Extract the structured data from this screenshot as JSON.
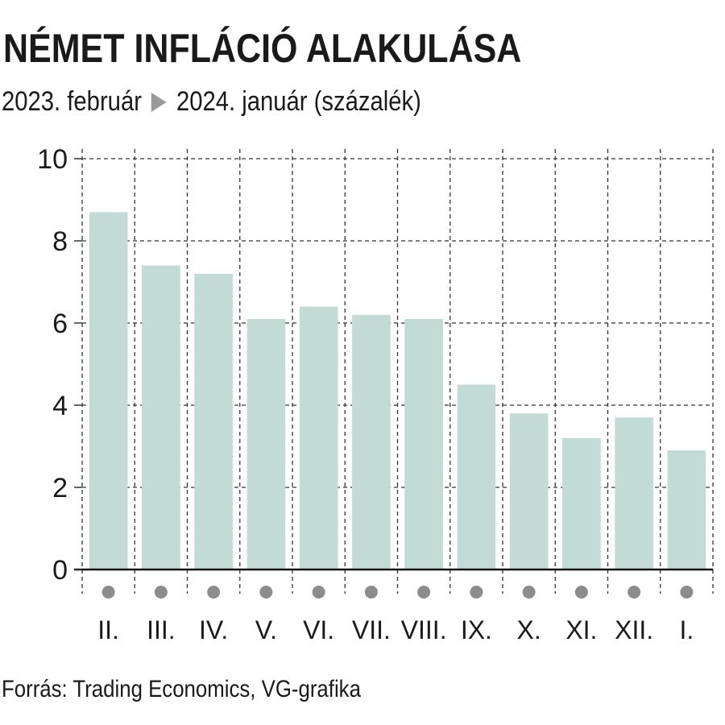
{
  "header": {
    "title": "NÉMET INFLÁCIÓ ALAKULÁSA",
    "subtitle_start": "2023. február",
    "subtitle_end": "2024. január (százalék)"
  },
  "footer": {
    "source": "Forrás: Trading Economics, VG-grafika"
  },
  "colors": {
    "bar": "#c2dbd4",
    "grid": "#333333",
    "marker": "#8c8c8c",
    "arrow": "#9a9a9a"
  },
  "chart_data": {
    "type": "bar",
    "title": "NÉMET INFLÁCIÓ ALAKULÁSA",
    "subtitle": "2023. február ▶ 2024. január (százalék)",
    "categories": [
      "II.",
      "III.",
      "IV.",
      "V.",
      "VI.",
      "VII.",
      "VIII.",
      "IX.",
      "X.",
      "XI.",
      "XII.",
      "I."
    ],
    "values": [
      8.7,
      7.4,
      7.2,
      6.1,
      6.4,
      6.2,
      6.1,
      4.5,
      3.8,
      3.2,
      3.7,
      2.9
    ],
    "ylim": [
      0,
      10
    ],
    "yticks": [
      "0",
      "2",
      "4",
      "6",
      "8",
      "10"
    ],
    "xlabel": "",
    "ylabel": "",
    "grid": true,
    "legend": "none"
  }
}
